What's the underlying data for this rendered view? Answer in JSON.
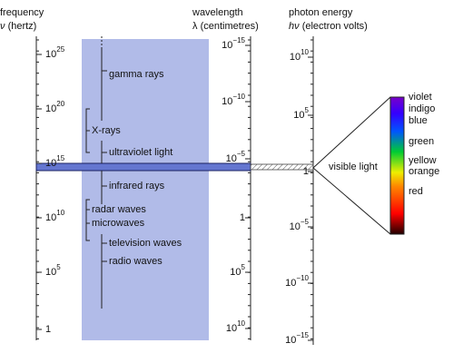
{
  "axes": {
    "frequency": {
      "title": "frequency",
      "symbol": "ν",
      "unit": "(hertz)",
      "ticks": [
        {
          "base": "10",
          "exp": "25"
        },
        {
          "base": "10",
          "exp": "20"
        },
        {
          "base": "10",
          "exp": "15"
        },
        {
          "base": "10",
          "exp": "10"
        },
        {
          "base": "10",
          "exp": "5"
        },
        {
          "base": "1"
        }
      ]
    },
    "wavelength": {
      "title": "wavelength",
      "symbol": "λ",
      "unit": "(centimetres)",
      "ticks": [
        {
          "base": "10",
          "exp": "−15"
        },
        {
          "base": "10",
          "exp": "−10"
        },
        {
          "base": "10",
          "exp": "−5"
        },
        {
          "base": "1"
        },
        {
          "base": "10",
          "exp": "5"
        },
        {
          "base": "10",
          "exp": "10"
        }
      ]
    },
    "energy": {
      "title": "photon energy",
      "symbol": "hν",
      "unit": "(electron volts)",
      "ticks": [
        {
          "base": "10",
          "exp": "10"
        },
        {
          "base": "10",
          "exp": "5"
        },
        {
          "base": "1"
        },
        {
          "base": "10",
          "exp": "−5"
        },
        {
          "base": "10",
          "exp": "−10"
        },
        {
          "base": "10",
          "exp": "−15"
        }
      ]
    }
  },
  "bands": [
    "gamma rays",
    "X-rays",
    "ultraviolet light",
    "infrared rays",
    "radar waves",
    "microwaves",
    "television waves",
    "radio waves"
  ],
  "visible": {
    "label": "visible light",
    "colors": [
      "violet",
      "indigo",
      "blue",
      "green",
      "yellow",
      "orange",
      "red"
    ]
  }
}
